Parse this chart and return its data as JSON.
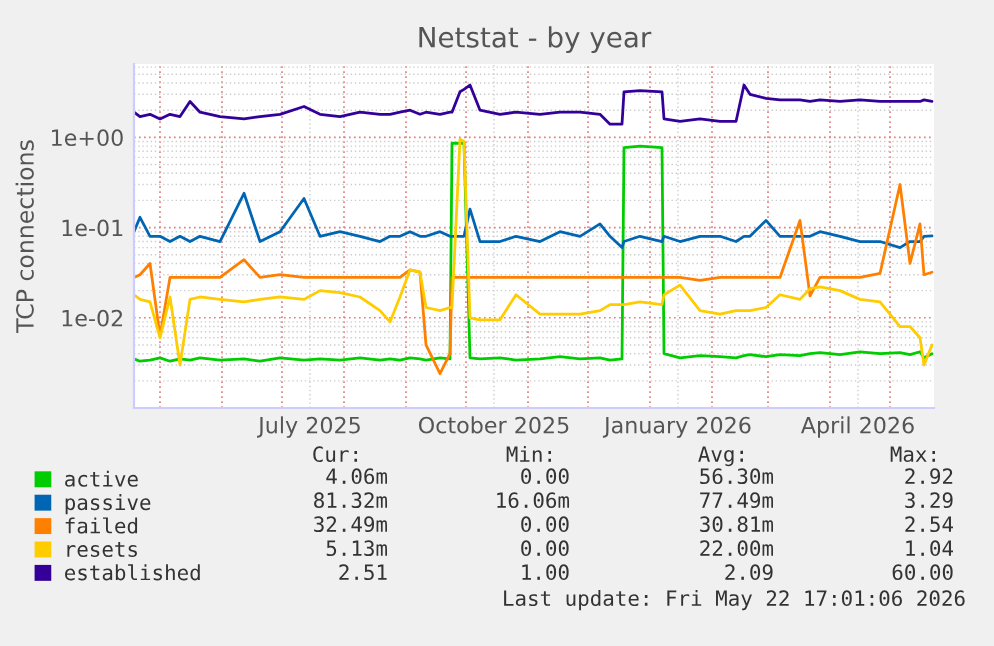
{
  "chart_data": {
    "type": "line",
    "title": "Netstat - by year",
    "ylabel": "TCP connections",
    "x": [
      "2025-04-18",
      "2025-04-21",
      "2025-04-26",
      "2025-05-01",
      "2025-05-06",
      "2025-05-11",
      "2025-05-16",
      "2025-05-21",
      "2025-05-31",
      "2025-06-12",
      "2025-06-20",
      "2025-06-30",
      "2025-07-12",
      "2025-07-20",
      "2025-07-30",
      "2025-08-09",
      "2025-08-19",
      "2025-08-24",
      "2025-08-29",
      "2025-09-03",
      "2025-09-08",
      "2025-09-11",
      "2025-09-18",
      "2025-09-23",
      "2025-09-24",
      "2025-09-28",
      "2025-09-30",
      "2025-10-03",
      "2025-10-08",
      "2025-10-18",
      "2025-10-26",
      "2025-11-07",
      "2025-11-17",
      "2025-11-27",
      "2025-12-07",
      "2025-12-12",
      "2025-12-18",
      "2025-12-19",
      "2025-12-27",
      "2026-01-07",
      "2026-01-08",
      "2026-01-16",
      "2026-01-26",
      "2026-02-05",
      "2026-02-13",
      "2026-02-17",
      "2026-02-20",
      "2026-02-28",
      "2026-03-07",
      "2026-03-17",
      "2026-03-22",
      "2026-03-27",
      "2026-04-06",
      "2026-04-16",
      "2026-04-26",
      "2026-05-06",
      "2026-05-11",
      "2026-05-16",
      "2026-05-18",
      "2026-05-22"
    ],
    "series": [
      {
        "name": "active",
        "color": "#00cc00",
        "values": [
          0.0035,
          0.0033,
          0.0034,
          0.0036,
          0.0033,
          0.0035,
          0.0034,
          0.0036,
          0.0034,
          0.0035,
          0.0033,
          0.0036,
          0.0034,
          0.0035,
          0.0034,
          0.0036,
          0.0034,
          0.0035,
          0.0034,
          0.0036,
          0.0035,
          0.0034,
          0.0036,
          0.0035,
          0.86,
          0.86,
          0.86,
          0.0036,
          0.0035,
          0.0036,
          0.0034,
          0.0035,
          0.0037,
          0.0035,
          0.0036,
          0.0034,
          0.0035,
          0.77,
          0.8,
          0.77,
          0.004,
          0.0036,
          0.0038,
          0.0037,
          0.0036,
          0.0038,
          0.0039,
          0.0037,
          0.0039,
          0.0038,
          0.004,
          0.0041,
          0.0039,
          0.0042,
          0.004,
          0.0041,
          0.0039,
          0.0042,
          0.0036,
          0.004
        ]
      },
      {
        "name": "passive",
        "color": "#0066b3",
        "values": [
          0.09,
          0.13,
          0.08,
          0.08,
          0.07,
          0.08,
          0.07,
          0.08,
          0.07,
          0.24,
          0.07,
          0.09,
          0.21,
          0.08,
          0.09,
          0.08,
          0.07,
          0.08,
          0.08,
          0.09,
          0.08,
          0.08,
          0.09,
          0.08,
          0.08,
          0.08,
          0.08,
          0.16,
          0.07,
          0.07,
          0.08,
          0.07,
          0.09,
          0.08,
          0.11,
          0.08,
          0.06,
          0.07,
          0.08,
          0.07,
          0.08,
          0.07,
          0.08,
          0.08,
          0.07,
          0.08,
          0.08,
          0.12,
          0.08,
          0.08,
          0.08,
          0.09,
          0.08,
          0.07,
          0.07,
          0.06,
          0.07,
          0.07,
          0.08,
          0.081
        ]
      },
      {
        "name": "failed",
        "color": "#ff8000",
        "values": [
          0.028,
          0.03,
          0.04,
          0.0063,
          0.028,
          0.028,
          0.028,
          0.028,
          0.028,
          0.044,
          0.028,
          0.03,
          0.028,
          0.028,
          0.028,
          0.028,
          0.028,
          0.028,
          0.028,
          0.034,
          0.032,
          0.005,
          0.0024,
          0.004,
          0.028,
          0.028,
          0.028,
          0.028,
          0.028,
          0.028,
          0.028,
          0.028,
          0.028,
          0.028,
          0.028,
          0.028,
          0.028,
          0.028,
          0.028,
          0.028,
          0.028,
          0.028,
          0.026,
          0.028,
          0.028,
          0.028,
          0.028,
          0.028,
          0.028,
          0.12,
          0.0175,
          0.028,
          0.028,
          0.028,
          0.031,
          0.3,
          0.04,
          0.11,
          0.03,
          0.032
        ]
      },
      {
        "name": "resets",
        "color": "#ffcc00",
        "values": [
          0.018,
          0.016,
          0.015,
          0.006,
          0.017,
          0.003,
          0.016,
          0.017,
          0.016,
          0.015,
          0.016,
          0.017,
          0.016,
          0.02,
          0.019,
          0.017,
          0.012,
          0.009,
          0.017,
          0.034,
          0.032,
          0.013,
          0.012,
          0.013,
          0.013,
          0.95,
          0.9,
          0.01,
          0.0095,
          0.0095,
          0.018,
          0.011,
          0.011,
          0.011,
          0.012,
          0.014,
          0.014,
          0.014,
          0.015,
          0.014,
          0.018,
          0.023,
          0.012,
          0.011,
          0.012,
          0.012,
          0.012,
          0.013,
          0.018,
          0.016,
          0.021,
          0.022,
          0.02,
          0.016,
          0.015,
          0.008,
          0.008,
          0.006,
          0.003,
          0.005
        ]
      },
      {
        "name": "established",
        "color": "#330099",
        "values": [
          1.9,
          1.7,
          1.8,
          1.6,
          1.8,
          1.7,
          2.5,
          1.9,
          1.7,
          1.6,
          1.7,
          1.8,
          2.2,
          1.8,
          1.7,
          1.9,
          1.8,
          1.8,
          1.9,
          2.0,
          1.8,
          1.9,
          1.8,
          1.9,
          1.9,
          3.2,
          3.4,
          3.8,
          2.0,
          1.8,
          1.9,
          1.8,
          1.9,
          1.9,
          1.8,
          1.4,
          1.4,
          3.2,
          3.3,
          3.2,
          1.6,
          1.5,
          1.6,
          1.5,
          1.5,
          3.8,
          3.0,
          2.7,
          2.6,
          2.6,
          2.5,
          2.6,
          2.5,
          2.6,
          2.5,
          2.5,
          2.5,
          2.5,
          2.6,
          2.51
        ]
      }
    ],
    "log": "y",
    "ylim": [
      0.001,
      6.5
    ],
    "yticks": [
      {
        "value": 0.01,
        "label": "1e-02"
      },
      {
        "value": 0.1,
        "label": "1e-01"
      },
      {
        "value": 1,
        "label": "1e+00"
      }
    ],
    "xlim": [
      "2025-04-18",
      "2026-05-23"
    ],
    "xticks": [
      {
        "value": "2025-07-15",
        "label": "July 2025"
      },
      {
        "value": "2025-10-15",
        "label": "October 2025"
      },
      {
        "value": "2026-01-15",
        "label": "January 2026"
      },
      {
        "value": "2026-04-15",
        "label": "April 2026"
      }
    ],
    "grid": true,
    "legend": "bottom left",
    "annotations": [
      "Cur:",
      "Min:",
      "Avg:",
      "Max:",
      "4.06m",
      "0.00",
      "56.30m",
      "2.92",
      "81.32m",
      "16.06m",
      "77.49m",
      "3.29",
      "32.49m",
      "0.00",
      "30.81m",
      "2.54",
      "5.13m",
      "0.00",
      "22.00m",
      "1.04",
      "2.51",
      "1.00",
      "2.09",
      "60.00",
      "Last update: Fri May 22 17:01:06 2026"
    ]
  }
}
